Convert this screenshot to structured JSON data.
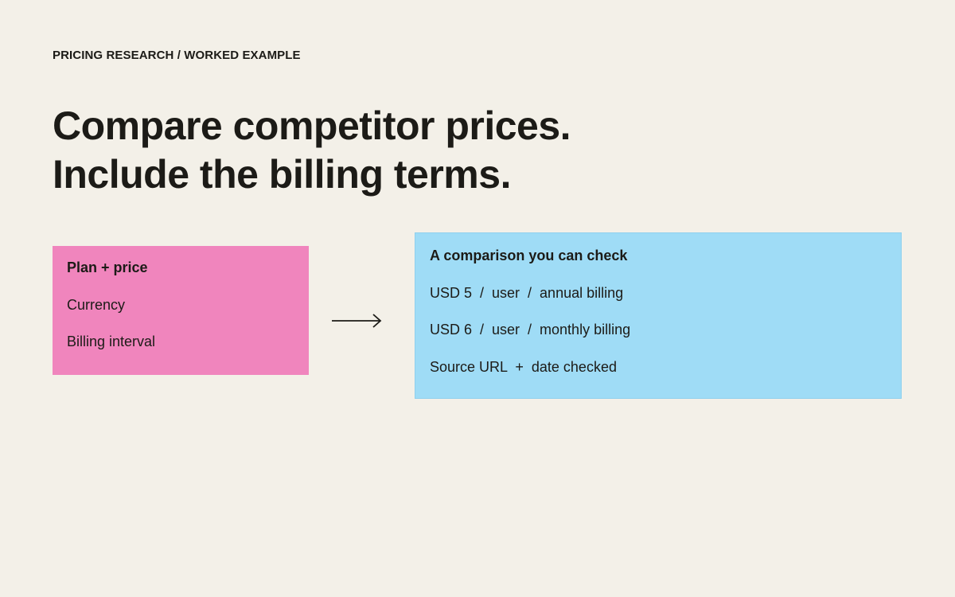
{
  "header": {
    "eyebrow": "PRICING RESEARCH / WORKED EXAMPLE",
    "title_lines": [
      "Compare competitor prices.",
      "Include the billing terms."
    ]
  },
  "input_card": {
    "title": "Plan + price",
    "items": [
      "Currency",
      "Billing interval"
    ]
  },
  "output_card": {
    "title": "A comparison you can check",
    "items": [
      "USD 5  /  user  /  annual billing",
      "USD 6  /  user  /  monthly billing",
      "Source URL  +  date checked"
    ]
  }
}
